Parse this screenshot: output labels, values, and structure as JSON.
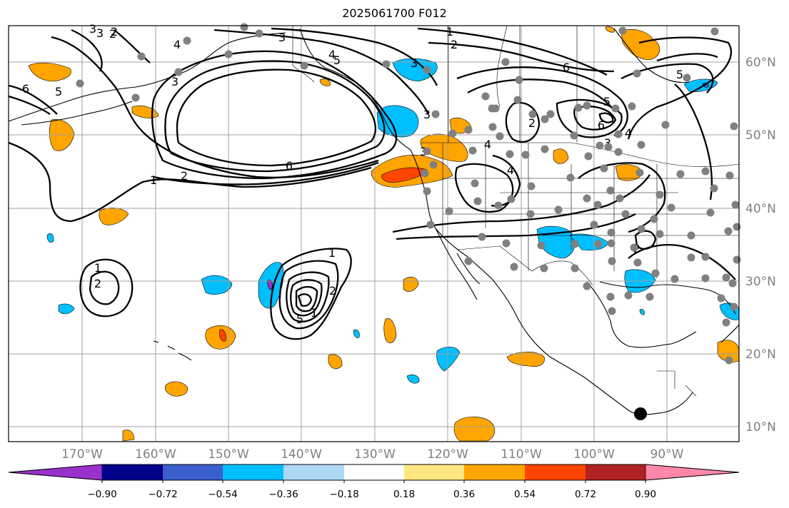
{
  "title": "2025061700 F012",
  "map": {
    "lon_labels": [
      "170°W",
      "160°W",
      "150°W",
      "140°W",
      "130°W",
      "120°W",
      "110°W",
      "100°W",
      "90°W"
    ],
    "lat_labels": [
      "60°N",
      "50°N",
      "40°N",
      "30°N",
      "20°N",
      "10°N"
    ],
    "grid": true,
    "contour_color": "#000000",
    "station_color": "#808080",
    "contour_labels": [
      "1",
      "2",
      "3",
      "4",
      "5",
      "6"
    ]
  },
  "colorbar": {
    "ticks": [
      "−0.90",
      "−0.72",
      "−0.54",
      "−0.36",
      "−0.18",
      "0.18",
      "0.36",
      "0.54",
      "0.72",
      "0.90"
    ],
    "colors": [
      "#9932cc",
      "#00008b",
      "#3b5fcd",
      "#00bfff",
      "#add8f6",
      "#ffffff",
      "#ffe680",
      "#ffa500",
      "#ff4500",
      "#b22222",
      "#ff88aa"
    ]
  }
}
